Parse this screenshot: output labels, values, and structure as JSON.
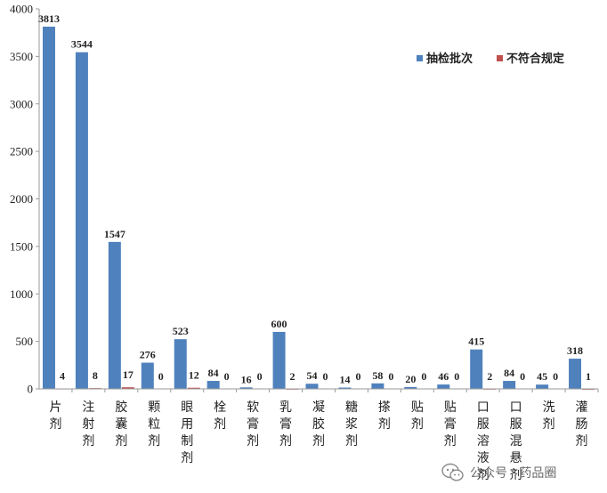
{
  "chart_data": {
    "type": "bar",
    "title": "",
    "xlabel": "",
    "ylabel": "",
    "ylim": [
      0,
      4000
    ],
    "yticks": [
      0,
      500,
      1000,
      1500,
      2000,
      2500,
      3000,
      3500,
      4000
    ],
    "grid": false,
    "legend_position": "top-right",
    "categories": [
      "片剂",
      "注射剂",
      "胶囊剂",
      "颗粒剂",
      "眼用制剂",
      "栓剂",
      "软膏剂",
      "乳膏剂",
      "凝胶剂",
      "糖浆剂",
      "搽剂",
      "贴剂",
      "贴膏剂",
      "口服溶液剂",
      "口服混悬剂",
      "洗剂",
      "灌肠剂"
    ],
    "series": [
      {
        "name": "抽检批次",
        "color": "#4f81bd",
        "values": [
          3813,
          3544,
          1547,
          276,
          523,
          84,
          16,
          600,
          54,
          14,
          58,
          20,
          46,
          415,
          84,
          45,
          318
        ]
      },
      {
        "name": "不符合规定",
        "color": "#c0504d",
        "values": [
          4,
          8,
          17,
          0,
          12,
          0,
          0,
          2,
          0,
          0,
          0,
          0,
          0,
          2,
          0,
          0,
          1
        ]
      }
    ]
  },
  "watermark": {
    "text": "公众号 · 药品圈",
    "icon": "wechat-icon"
  }
}
